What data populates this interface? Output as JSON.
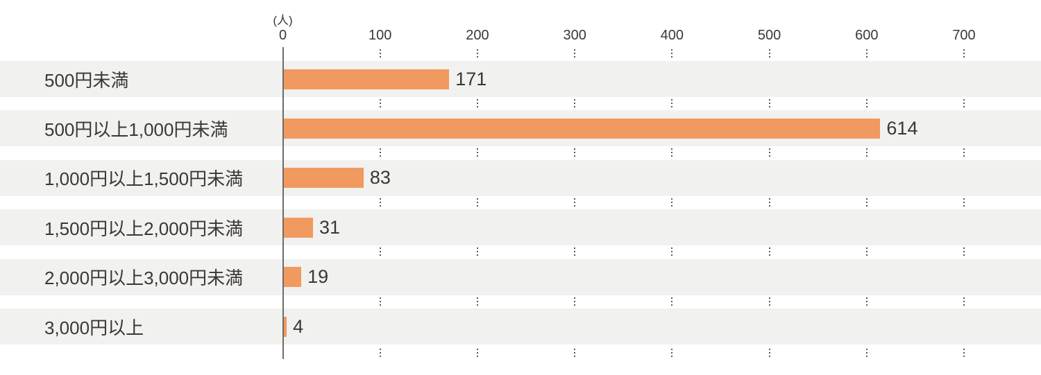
{
  "chart_data": {
    "type": "bar",
    "orientation": "horizontal",
    "unit_label": "(人)",
    "x_ticks": [
      0,
      100,
      200,
      300,
      400,
      500,
      600,
      700
    ],
    "xlim": [
      0,
      700
    ],
    "categories": [
      "500円未満",
      "500円以上1,000円未満",
      "1,000円以上1,500円未満",
      "1,500円以上2,000円未満",
      "2,000円以上3,000円未満",
      "3,000円以上"
    ],
    "values": [
      171,
      614,
      83,
      31,
      19,
      4
    ],
    "grid": "dotted vertical gridline segments in white gaps between row bands",
    "legend_position": "none",
    "colors": {
      "bar": "#f09a60",
      "row_band": "#f1f1f0",
      "text": "#3b3735",
      "axis_line": "#6e6a68",
      "grid_dots": "#595757",
      "background": "#ffffff"
    }
  }
}
